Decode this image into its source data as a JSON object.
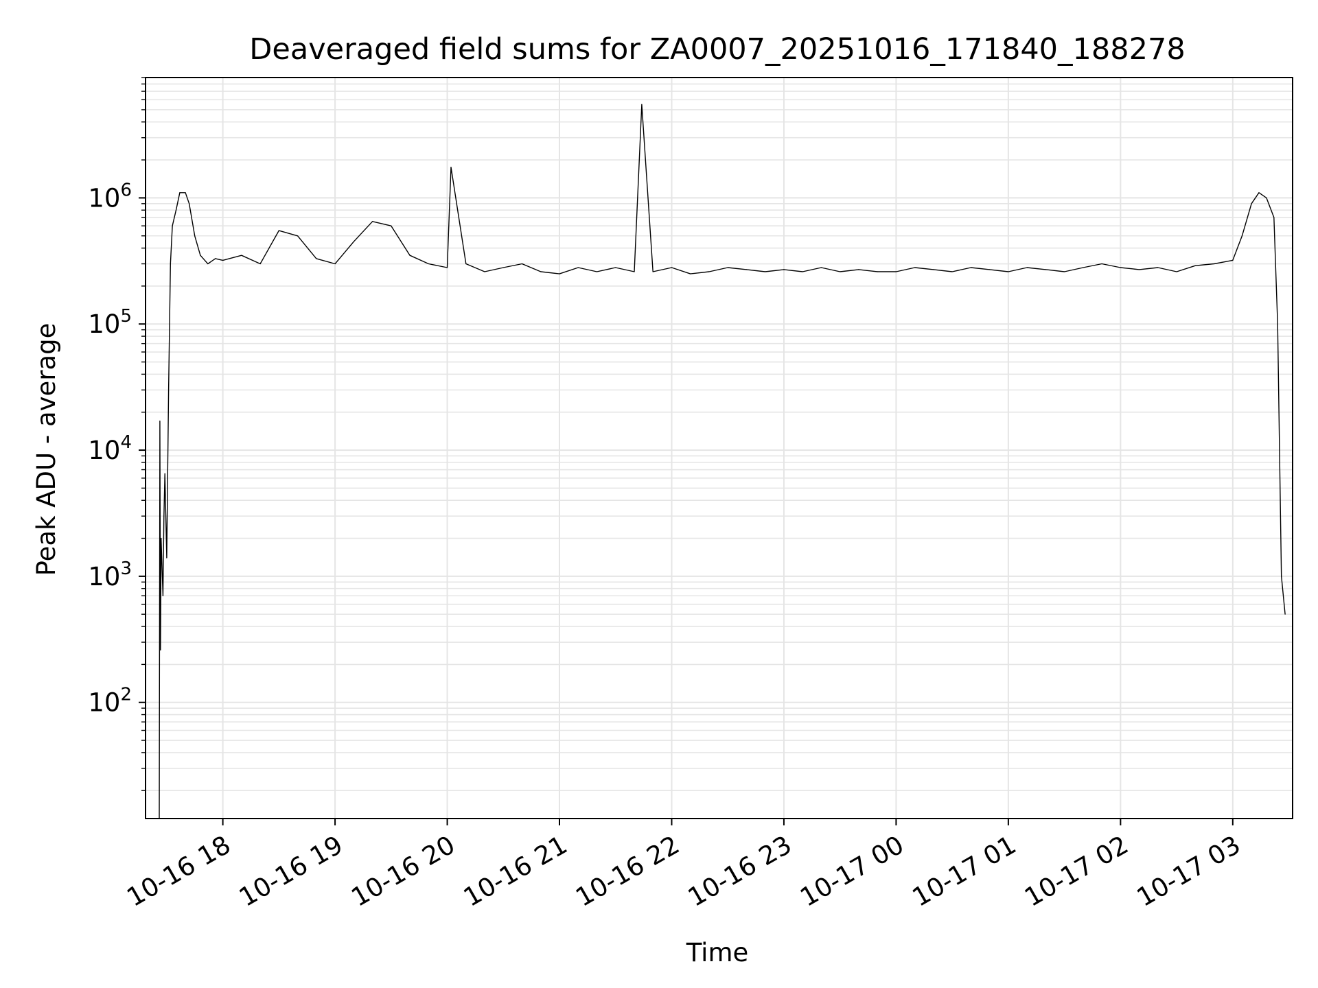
{
  "chart_data": {
    "type": "line",
    "title": "Deaveraged field sums for ZA0007_20251016_171840_188278",
    "xlabel": "Time",
    "ylabel": "Peak ADU - average",
    "yscale": "log",
    "ylim": [
      12,
      9000000
    ],
    "xlim": [
      "2025-10-16 17:18:40",
      "2025-10-17 03:32:00"
    ],
    "grid": true,
    "grid_color": "#e5e5e5",
    "line_color": "#000000",
    "x_ticks": [
      "10-16 18",
      "10-16 19",
      "10-16 20",
      "10-16 21",
      "10-16 22",
      "10-16 23",
      "10-17 00",
      "10-17 01",
      "10-17 02",
      "10-17 03"
    ],
    "x_tick_times": [
      "2025-10-16 18:00",
      "2025-10-16 19:00",
      "2025-10-16 20:00",
      "2025-10-16 21:00",
      "2025-10-16 22:00",
      "2025-10-16 23:00",
      "2025-10-17 00:00",
      "2025-10-17 01:00",
      "2025-10-17 02:00",
      "2025-10-17 03:00"
    ],
    "y_ticks": [
      {
        "value": 100,
        "base": "10",
        "exp": "2"
      },
      {
        "value": 1000,
        "base": "10",
        "exp": "3"
      },
      {
        "value": 10000,
        "base": "10",
        "exp": "4"
      },
      {
        "value": 100000,
        "base": "10",
        "exp": "5"
      },
      {
        "value": 1000000,
        "base": "10",
        "exp": "6"
      }
    ],
    "series": [
      {
        "x": [
          "2025-10-16 17:26",
          "2025-10-16 17:26:20",
          "2025-10-16 17:26:40",
          "2025-10-16 17:27",
          "2025-10-16 17:28",
          "2025-10-16 17:28:30",
          "2025-10-16 17:29",
          "2025-10-16 17:30",
          "2025-10-16 17:31",
          "2025-10-16 17:32",
          "2025-10-16 17:33",
          "2025-10-16 17:35",
          "2025-10-16 17:37",
          "2025-10-16 17:40",
          "2025-10-16 17:42",
          "2025-10-16 17:45",
          "2025-10-16 17:48",
          "2025-10-16 17:52",
          "2025-10-16 17:56",
          "2025-10-16 18:00",
          "2025-10-16 18:10",
          "2025-10-16 18:20",
          "2025-10-16 18:30",
          "2025-10-16 18:40",
          "2025-10-16 18:50",
          "2025-10-16 19:00",
          "2025-10-16 19:10",
          "2025-10-16 19:20",
          "2025-10-16 19:30",
          "2025-10-16 19:40",
          "2025-10-16 19:50",
          "2025-10-16 20:00",
          "2025-10-16 20:02",
          "2025-10-16 20:10",
          "2025-10-16 20:20",
          "2025-10-16 20:30",
          "2025-10-16 20:40",
          "2025-10-16 20:50",
          "2025-10-16 21:00",
          "2025-10-16 21:10",
          "2025-10-16 21:20",
          "2025-10-16 21:30",
          "2025-10-16 21:40",
          "2025-10-16 21:44",
          "2025-10-16 21:50",
          "2025-10-16 22:00",
          "2025-10-16 22:10",
          "2025-10-16 22:20",
          "2025-10-16 22:30",
          "2025-10-16 22:40",
          "2025-10-16 22:50",
          "2025-10-16 23:00",
          "2025-10-16 23:10",
          "2025-10-16 23:20",
          "2025-10-16 23:30",
          "2025-10-16 23:40",
          "2025-10-16 23:50",
          "2025-10-17 00:00",
          "2025-10-17 00:10",
          "2025-10-17 00:20",
          "2025-10-17 00:30",
          "2025-10-17 00:40",
          "2025-10-17 00:50",
          "2025-10-17 01:00",
          "2025-10-17 01:10",
          "2025-10-17 01:20",
          "2025-10-17 01:30",
          "2025-10-17 01:40",
          "2025-10-17 01:50",
          "2025-10-17 02:00",
          "2025-10-17 02:10",
          "2025-10-17 02:20",
          "2025-10-17 02:30",
          "2025-10-17 02:40",
          "2025-10-17 02:50",
          "2025-10-17 03:00",
          "2025-10-17 03:05",
          "2025-10-17 03:10",
          "2025-10-17 03:14",
          "2025-10-17 03:18",
          "2025-10-17 03:22",
          "2025-10-17 03:24",
          "2025-10-17 03:26",
          "2025-10-17 03:28"
        ],
        "y": [
          12,
          17000,
          260,
          2000,
          700,
          3000,
          6500,
          1400,
          30000,
          300000,
          600000,
          800000,
          1100000,
          1100000,
          900000,
          500000,
          350000,
          300000,
          330000,
          320000,
          350000,
          300000,
          550000,
          500000,
          330000,
          300000,
          450000,
          650000,
          600000,
          350000,
          300000,
          280000,
          1750000,
          300000,
          260000,
          280000,
          300000,
          260000,
          250000,
          280000,
          260000,
          280000,
          260000,
          5500000,
          260000,
          280000,
          250000,
          260000,
          280000,
          270000,
          260000,
          270000,
          260000,
          280000,
          260000,
          270000,
          260000,
          260000,
          280000,
          270000,
          260000,
          280000,
          270000,
          260000,
          280000,
          270000,
          260000,
          280000,
          300000,
          280000,
          270000,
          280000,
          260000,
          290000,
          300000,
          320000,
          500000,
          900000,
          1100000,
          1000000,
          700000,
          100000,
          1000,
          500
        ]
      }
    ]
  }
}
